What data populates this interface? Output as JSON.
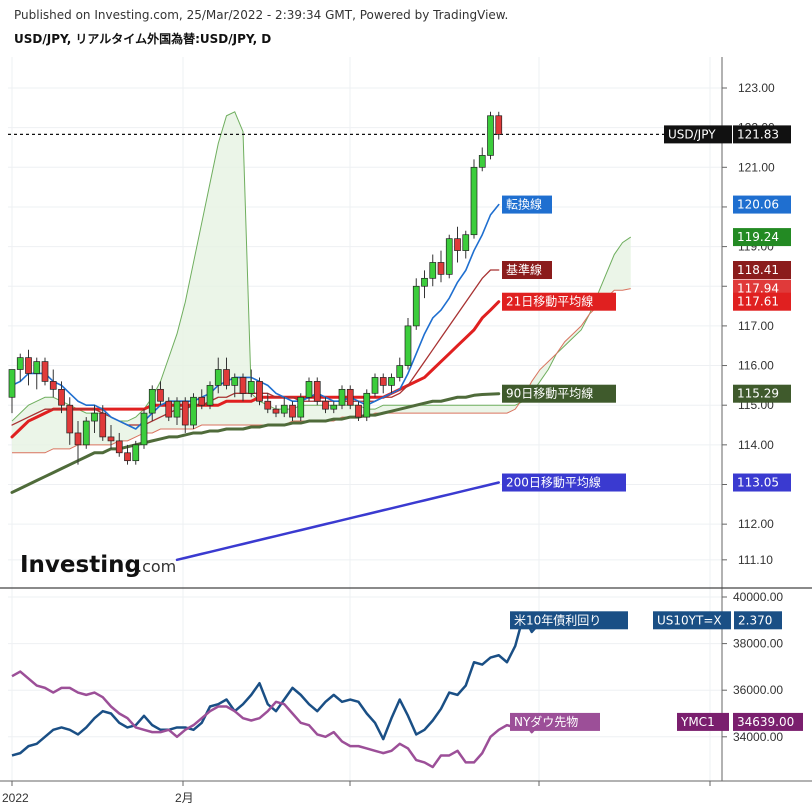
{
  "header": {
    "published": "Published on Investing.com, 25/Mar/2022 - 2:39:34 GMT, Powered by TradingView.",
    "symbol_title": "USD/JPY, リアルタイム外国為替:USD/JPY, D"
  },
  "logo": {
    "brand": "Investing",
    "suffix": ".com"
  },
  "chart_data": [
    {
      "type": "candlestick",
      "title": "USD/JPY, リアルタイム外国為替:USD/JPY, D",
      "ylim": [
        110.6,
        123.5
      ],
      "y_ticks": [
        "123.00",
        "122.00",
        "121.00",
        "120.00",
        "119.00",
        "118.00",
        "117.00",
        "116.00",
        "115.00",
        "114.00",
        "113.00",
        "112.00",
        "111.10"
      ],
      "x_ticks": [
        "2022",
        "2月"
      ],
      "grid": true,
      "last_price_line": 121.83,
      "candles": [
        {
          "o": 115.2,
          "h": 115.9,
          "l": 114.8,
          "c": 115.9
        },
        {
          "o": 115.9,
          "h": 116.3,
          "l": 115.6,
          "c": 116.2
        },
        {
          "o": 116.2,
          "h": 116.4,
          "l": 115.5,
          "c": 115.8
        },
        {
          "o": 115.8,
          "h": 116.2,
          "l": 115.4,
          "c": 116.1
        },
        {
          "o": 116.1,
          "h": 116.2,
          "l": 115.5,
          "c": 115.6
        },
        {
          "o": 115.6,
          "h": 115.9,
          "l": 115.2,
          "c": 115.4
        },
        {
          "o": 115.4,
          "h": 115.6,
          "l": 114.8,
          "c": 115.0
        },
        {
          "o": 115.0,
          "h": 115.2,
          "l": 114.0,
          "c": 114.3
        },
        {
          "o": 114.3,
          "h": 114.6,
          "l": 113.5,
          "c": 114.0
        },
        {
          "o": 114.0,
          "h": 114.7,
          "l": 113.9,
          "c": 114.6
        },
        {
          "o": 114.6,
          "h": 115.0,
          "l": 114.3,
          "c": 114.8
        },
        {
          "o": 114.8,
          "h": 115.0,
          "l": 114.1,
          "c": 114.2
        },
        {
          "o": 114.2,
          "h": 114.5,
          "l": 113.9,
          "c": 114.1
        },
        {
          "o": 114.1,
          "h": 114.3,
          "l": 113.7,
          "c": 113.8
        },
        {
          "o": 113.8,
          "h": 114.0,
          "l": 113.5,
          "c": 113.6
        },
        {
          "o": 113.6,
          "h": 114.1,
          "l": 113.5,
          "c": 114.0
        },
        {
          "o": 114.0,
          "h": 114.9,
          "l": 113.9,
          "c": 114.8
        },
        {
          "o": 114.8,
          "h": 115.5,
          "l": 114.6,
          "c": 115.4
        },
        {
          "o": 115.4,
          "h": 115.6,
          "l": 115.0,
          "c": 115.1
        },
        {
          "o": 115.1,
          "h": 115.2,
          "l": 114.6,
          "c": 114.7
        },
        {
          "o": 114.7,
          "h": 115.2,
          "l": 114.5,
          "c": 115.1
        },
        {
          "o": 115.1,
          "h": 115.2,
          "l": 114.3,
          "c": 114.5
        },
        {
          "o": 114.5,
          "h": 115.3,
          "l": 114.4,
          "c": 115.2
        },
        {
          "o": 115.2,
          "h": 115.4,
          "l": 114.9,
          "c": 115.0
        },
        {
          "o": 115.0,
          "h": 115.6,
          "l": 114.9,
          "c": 115.5
        },
        {
          "o": 115.5,
          "h": 116.2,
          "l": 115.3,
          "c": 115.9
        },
        {
          "o": 115.9,
          "h": 116.2,
          "l": 115.4,
          "c": 115.5
        },
        {
          "o": 115.5,
          "h": 115.8,
          "l": 115.2,
          "c": 115.7
        },
        {
          "o": 115.7,
          "h": 115.8,
          "l": 115.1,
          "c": 115.3
        },
        {
          "o": 115.3,
          "h": 115.9,
          "l": 115.2,
          "c": 115.6
        },
        {
          "o": 115.6,
          "h": 115.7,
          "l": 115.0,
          "c": 115.1
        },
        {
          "o": 115.1,
          "h": 115.3,
          "l": 114.8,
          "c": 114.9
        },
        {
          "o": 114.9,
          "h": 115.0,
          "l": 114.7,
          "c": 114.8
        },
        {
          "o": 114.8,
          "h": 115.2,
          "l": 114.7,
          "c": 115.0
        },
        {
          "o": 115.0,
          "h": 115.1,
          "l": 114.6,
          "c": 114.7
        },
        {
          "o": 114.7,
          "h": 115.3,
          "l": 114.6,
          "c": 115.2
        },
        {
          "o": 115.2,
          "h": 115.7,
          "l": 115.1,
          "c": 115.6
        },
        {
          "o": 115.6,
          "h": 115.7,
          "l": 115.0,
          "c": 115.1
        },
        {
          "o": 115.1,
          "h": 115.2,
          "l": 114.8,
          "c": 114.9
        },
        {
          "o": 114.9,
          "h": 115.1,
          "l": 114.8,
          "c": 115.0
        },
        {
          "o": 115.0,
          "h": 115.5,
          "l": 114.9,
          "c": 115.4
        },
        {
          "o": 115.4,
          "h": 115.5,
          "l": 114.9,
          "c": 115.0
        },
        {
          "o": 115.0,
          "h": 115.1,
          "l": 114.6,
          "c": 114.7
        },
        {
          "o": 114.7,
          "h": 115.4,
          "l": 114.6,
          "c": 115.3
        },
        {
          "o": 115.3,
          "h": 115.8,
          "l": 115.2,
          "c": 115.7
        },
        {
          "o": 115.7,
          "h": 115.8,
          "l": 115.3,
          "c": 115.5
        },
        {
          "o": 115.5,
          "h": 115.8,
          "l": 115.3,
          "c": 115.7
        },
        {
          "o": 115.7,
          "h": 116.2,
          "l": 115.6,
          "c": 116.0
        },
        {
          "o": 116.0,
          "h": 117.2,
          "l": 115.9,
          "c": 117.0
        },
        {
          "o": 117.0,
          "h": 118.2,
          "l": 116.9,
          "c": 118.0
        },
        {
          "o": 118.0,
          "h": 118.4,
          "l": 117.7,
          "c": 118.2
        },
        {
          "o": 118.2,
          "h": 118.8,
          "l": 118.0,
          "c": 118.6
        },
        {
          "o": 118.6,
          "h": 118.9,
          "l": 118.1,
          "c": 118.3
        },
        {
          "o": 118.3,
          "h": 119.3,
          "l": 118.2,
          "c": 119.2
        },
        {
          "o": 119.2,
          "h": 119.5,
          "l": 118.6,
          "c": 118.9
        },
        {
          "o": 118.9,
          "h": 119.4,
          "l": 118.7,
          "c": 119.3
        },
        {
          "o": 119.3,
          "h": 121.2,
          "l": 119.2,
          "c": 121.0
        },
        {
          "o": 121.0,
          "h": 121.5,
          "l": 120.9,
          "c": 121.3
        },
        {
          "o": 121.3,
          "h": 122.4,
          "l": 121.2,
          "c": 122.3
        },
        {
          "o": 122.3,
          "h": 122.4,
          "l": 121.7,
          "c": 121.83
        }
      ],
      "indicators": [
        {
          "name": "転換線",
          "last_value": "120.06",
          "color": "#1f6fd0"
        },
        {
          "name": "基準線",
          "last_value": "118.41",
          "color": "#a83232"
        },
        {
          "name": "21日移動平均線",
          "last_value": "117.61",
          "color": "#e02020"
        },
        {
          "name": "90日移動平均線",
          "last_value": "115.29",
          "color": "#4f6b3a"
        },
        {
          "name": "200日移動平均線",
          "last_value": "113.05",
          "color": "#3a3ad0"
        }
      ],
      "cloud": {
        "span_a_last": "119.24",
        "span_b_last": "117.94"
      },
      "price_tag": {
        "symbol": "USD/JPY",
        "value": "121.83"
      },
      "tenkan": [
        115.5,
        115.6,
        115.8,
        115.8,
        115.8,
        115.6,
        115.5,
        115.3,
        115.1,
        115.0,
        115.0,
        114.9,
        114.7,
        114.6,
        114.5,
        114.4,
        114.6,
        114.8,
        115.0,
        115.1,
        115.1,
        115.1,
        115.1,
        115.2,
        115.3,
        115.5,
        115.6,
        115.7,
        115.7,
        115.7,
        115.6,
        115.5,
        115.3,
        115.2,
        115.1,
        115.1,
        115.2,
        115.3,
        115.2,
        115.1,
        115.1,
        115.2,
        115.1,
        115.0,
        115.1,
        115.2,
        115.3,
        115.4,
        115.8,
        116.3,
        116.8,
        117.2,
        117.4,
        117.7,
        118.1,
        118.4,
        118.9,
        119.3,
        119.8,
        120.06
      ],
      "kijun": [
        114.5,
        114.6,
        114.7,
        114.8,
        114.9,
        114.9,
        114.9,
        114.9,
        114.9,
        114.9,
        114.9,
        114.8,
        114.7,
        114.6,
        114.5,
        114.5,
        114.5,
        114.6,
        114.7,
        114.8,
        114.9,
        114.9,
        115.0,
        115.0,
        115.1,
        115.2,
        115.2,
        115.3,
        115.3,
        115.3,
        115.3,
        115.3,
        115.2,
        115.2,
        115.2,
        115.1,
        115.1,
        115.1,
        115.1,
        115.1,
        115.1,
        115.1,
        115.1,
        115.1,
        115.1,
        115.2,
        115.2,
        115.3,
        115.5,
        115.8,
        116.1,
        116.4,
        116.7,
        117.0,
        117.3,
        117.6,
        117.9,
        118.2,
        118.41,
        118.41
      ],
      "ma21": [
        114.2,
        114.4,
        114.6,
        114.7,
        114.8,
        114.9,
        114.9,
        114.9,
        114.9,
        114.9,
        114.9,
        114.9,
        114.9,
        114.9,
        114.9,
        114.9,
        114.9,
        115.0,
        115.0,
        115.0,
        115.0,
        115.0,
        115.0,
        115.0,
        115.0,
        115.0,
        115.1,
        115.1,
        115.1,
        115.1,
        115.2,
        115.2,
        115.2,
        115.2,
        115.2,
        115.2,
        115.2,
        115.2,
        115.2,
        115.2,
        115.2,
        115.2,
        115.2,
        115.2,
        115.2,
        115.2,
        115.3,
        115.4,
        115.5,
        115.6,
        115.7,
        115.9,
        116.1,
        116.3,
        116.5,
        116.7,
        116.9,
        117.2,
        117.4,
        117.61
      ],
      "ma90": [
        112.8,
        112.9,
        113.0,
        113.1,
        113.2,
        113.3,
        113.4,
        113.5,
        113.6,
        113.7,
        113.8,
        113.8,
        113.9,
        113.9,
        113.95,
        114.0,
        114.05,
        114.1,
        114.15,
        114.2,
        114.2,
        114.25,
        114.3,
        114.3,
        114.35,
        114.35,
        114.4,
        114.4,
        114.4,
        114.45,
        114.45,
        114.5,
        114.5,
        114.5,
        114.55,
        114.55,
        114.6,
        114.6,
        114.6,
        114.65,
        114.65,
        114.7,
        114.7,
        114.75,
        114.75,
        114.8,
        114.85,
        114.9,
        114.95,
        115.0,
        115.05,
        115.1,
        115.1,
        115.15,
        115.2,
        115.2,
        115.25,
        115.27,
        115.28,
        115.29
      ],
      "ma200": [
        111.1,
        111.15,
        111.2,
        111.25,
        111.3,
        111.35,
        111.4,
        111.45,
        111.5,
        111.55,
        111.6,
        111.65,
        111.7,
        111.75,
        111.8,
        111.85,
        111.9,
        111.95,
        112.0,
        112.05,
        112.1,
        112.15,
        112.2,
        112.25,
        112.3,
        112.35,
        112.4,
        112.45,
        112.5,
        112.55,
        112.6,
        112.65,
        112.7,
        112.75,
        112.8,
        112.85,
        112.9,
        112.95,
        113.0,
        113.05
      ],
      "span_a": [
        114.6,
        114.8,
        115.0,
        115.1,
        115.2,
        115.2,
        115.1,
        115.0,
        114.9,
        114.8,
        114.8,
        114.8,
        114.7,
        114.6,
        114.6,
        114.7,
        114.9,
        115.2,
        115.6,
        116.2,
        116.8,
        117.6,
        118.6,
        119.6,
        120.6,
        121.6,
        122.3,
        122.4,
        121.9,
        115.3,
        115.1,
        115.0,
        114.9,
        114.9,
        114.9,
        115.0,
        115.0,
        115.0,
        115.0,
        115.0,
        115.0,
        115.0,
        115.0,
        114.9,
        114.9,
        115.0,
        115.0,
        115.0,
        115.0,
        115.0,
        115.0,
        115.0,
        115.0,
        115.0,
        115.0,
        115.0,
        115.0,
        115.0,
        115.0,
        115.0,
        115.0,
        115.0,
        115.1,
        115.3,
        115.6,
        115.9,
        116.3,
        116.5,
        116.7,
        116.9,
        117.3,
        117.8,
        118.3,
        118.8,
        119.1,
        119.24
      ],
      "span_b": [
        113.8,
        113.8,
        113.8,
        113.8,
        113.8,
        113.9,
        113.9,
        113.9,
        114.0,
        114.0,
        114.0,
        114.0,
        114.0,
        114.1,
        114.1,
        114.2,
        114.3,
        114.3,
        114.4,
        114.4,
        114.4,
        114.4,
        114.4,
        114.5,
        114.5,
        114.5,
        114.5,
        114.5,
        114.5,
        114.5,
        114.5,
        114.5,
        114.5,
        114.5,
        114.6,
        114.6,
        114.6,
        114.6,
        114.6,
        114.6,
        114.7,
        114.7,
        114.7,
        114.7,
        114.8,
        114.8,
        114.8,
        114.8,
        114.8,
        114.8,
        114.8,
        114.8,
        114.8,
        114.8,
        114.8,
        114.8,
        114.8,
        114.8,
        114.8,
        114.8,
        114.8,
        114.9,
        115.2,
        115.6,
        115.9,
        116.1,
        116.3,
        116.6,
        116.8,
        117.0,
        117.3,
        117.5,
        117.7,
        117.9,
        117.9,
        117.94
      ]
    },
    {
      "type": "line",
      "ylim": [
        32300,
        40200
      ],
      "y_ticks": [
        "40000.00",
        "38000.00",
        "36000.00",
        "34000.00"
      ],
      "series": [
        {
          "name": "米10年債利回り",
          "symbol": "US10YT=X",
          "last_value": "2.370",
          "color": "#1a4f85",
          "values": [
            33200,
            33300,
            33600,
            33700,
            34000,
            34300,
            34400,
            34300,
            34100,
            34400,
            34800,
            35100,
            35000,
            34600,
            34400,
            34500,
            34900,
            34500,
            34300,
            34300,
            34400,
            34400,
            34300,
            34600,
            35300,
            35400,
            35600,
            35100,
            35400,
            35800,
            36300,
            35400,
            35100,
            35600,
            36100,
            35800,
            35400,
            35100,
            35500,
            35800,
            35500,
            35600,
            35500,
            35000,
            34600,
            33900,
            34800,
            35600,
            34900,
            34100,
            34300,
            34700,
            35200,
            35900,
            35800,
            36200,
            37200,
            37100,
            37400,
            37500,
            37200,
            37900,
            39200,
            38500,
            38900,
            39100,
            39000
          ]
        },
        {
          "name": "NYダウ先物",
          "symbol": "YMC1",
          "last_value": "34639.00",
          "color": "#9c4f98",
          "values": [
            36600,
            36800,
            36500,
            36200,
            36100,
            35900,
            36100,
            36100,
            35900,
            35800,
            35900,
            35700,
            35300,
            35000,
            34800,
            34400,
            34300,
            34200,
            34200,
            34300,
            34000,
            34300,
            34500,
            34800,
            35100,
            35300,
            35300,
            35100,
            34800,
            34700,
            34800,
            35100,
            35500,
            35400,
            35000,
            34600,
            34500,
            34100,
            34000,
            34200,
            33800,
            33600,
            33600,
            33500,
            33400,
            33300,
            33400,
            33700,
            33500,
            33000,
            32900,
            32700,
            33200,
            33200,
            33400,
            32900,
            32900,
            33300,
            34000,
            34300,
            34500,
            34400,
            34700,
            34200,
            34600,
            34639
          ]
        }
      ]
    }
  ]
}
